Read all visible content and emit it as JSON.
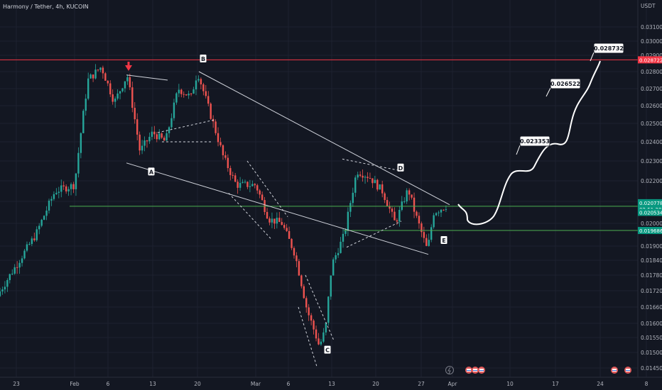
{
  "header": {
    "title": "Harmony / Tether, 4h, KUCOIN"
  },
  "price_axis": {
    "currency": "USDT",
    "ticks": [
      "0.031000",
      "0.030000",
      "0.029000",
      "0.028000",
      "0.027000",
      "0.026000",
      "0.025000",
      "0.024000",
      "0.023000",
      "0.022000",
      "0.021000",
      "0.020000",
      "0.019000",
      "0.018400",
      "0.017800",
      "0.017200",
      "0.016600",
      "0.016000",
      "0.015500",
      "0.015000",
      "0.014500"
    ]
  },
  "price_tags": [
    {
      "text": "0.028722",
      "value": 0.028722,
      "color": "#f23645"
    },
    {
      "text": "0.020778",
      "value": 0.020778,
      "color": "#089981"
    },
    {
      "text": "02:51:28",
      "value": 0.02047,
      "color": "#089981"
    },
    {
      "text": "0.020534",
      "value": 0.020534,
      "color": "#089981"
    },
    {
      "text": "0.019686",
      "value": 0.019686,
      "color": "#089981"
    }
  ],
  "time_axis": {
    "ticks": [
      "23",
      "Feb",
      "6",
      "13",
      "20",
      "Mar",
      "6",
      "13",
      "20",
      "27",
      "Apr",
      "10",
      "17",
      "24",
      "8"
    ]
  },
  "chart_data": {
    "type": "candlestick",
    "symbol": "Harmony / Tether",
    "interval": "4h",
    "exchange": "KUCOIN",
    "x_axis": [
      "23",
      "Feb",
      "6",
      "13",
      "20",
      "Mar",
      "6",
      "13",
      "20",
      "27",
      "Apr",
      "10",
      "17",
      "24",
      "8"
    ],
    "y_axis_unit": "USDT",
    "y_range": [
      0.0142,
      0.0316
    ],
    "horizontal_levels": [
      {
        "value": 0.028722,
        "color": "#f23645"
      },
      {
        "value": 0.020778,
        "color": "#089981"
      },
      {
        "value": 0.019686,
        "color": "#089981"
      }
    ],
    "pattern_points": [
      "A",
      "B",
      "C",
      "D",
      "E"
    ],
    "projection_targets": [
      {
        "label": "0.023353",
        "value": 0.023353
      },
      {
        "label": "0.026522",
        "value": 0.026522
      },
      {
        "label": "0.028732",
        "value": 0.028732
      }
    ],
    "price_path": [
      {
        "t": "Jan 20",
        "price": 0.017
      },
      {
        "t": "Jan 23",
        "price": 0.0182
      },
      {
        "t": "Jan 26",
        "price": 0.0195
      },
      {
        "t": "Jan 29",
        "price": 0.0215
      },
      {
        "t": "Feb 1",
        "price": 0.0218
      },
      {
        "t": "Feb 3",
        "price": 0.0275
      },
      {
        "t": "Feb 5",
        "price": 0.0283
      },
      {
        "t": "Feb 7",
        "price": 0.0262
      },
      {
        "t": "Feb 9",
        "price": 0.0278
      },
      {
        "t": "Feb 11",
        "price": 0.0235
      },
      {
        "t": "Feb 13",
        "price": 0.0245
      },
      {
        "t": "Feb 15",
        "price": 0.024
      },
      {
        "t": "Feb 17",
        "price": 0.027
      },
      {
        "t": "Feb 19",
        "price": 0.0265
      },
      {
        "t": "Feb 20",
        "price": 0.028
      },
      {
        "t": "Feb 22",
        "price": 0.0255
      },
      {
        "t": "Feb 24",
        "price": 0.0232
      },
      {
        "t": "Feb 26",
        "price": 0.0218
      },
      {
        "t": "Mar 1",
        "price": 0.0218
      },
      {
        "t": "Mar 3",
        "price": 0.0202
      },
      {
        "t": "Mar 5",
        "price": 0.02
      },
      {
        "t": "Mar 7",
        "price": 0.0187
      },
      {
        "t": "Mar 9",
        "price": 0.0165
      },
      {
        "t": "Mar 11",
        "price": 0.0152
      },
      {
        "t": "Mar 12",
        "price": 0.0158
      },
      {
        "t": "Mar 13",
        "price": 0.0182
      },
      {
        "t": "Mar 15",
        "price": 0.0195
      },
      {
        "t": "Mar 17",
        "price": 0.0225
      },
      {
        "t": "Mar 19",
        "price": 0.0222
      },
      {
        "t": "Mar 21",
        "price": 0.0215
      },
      {
        "t": "Mar 23",
        "price": 0.02
      },
      {
        "t": "Mar 25",
        "price": 0.0216
      },
      {
        "t": "Mar 26",
        "price": 0.0205
      },
      {
        "t": "Mar 28",
        "price": 0.0188
      },
      {
        "t": "Mar 29",
        "price": 0.0205
      },
      {
        "t": "Mar 31",
        "price": 0.0208
      }
    ]
  },
  "toolbar_icons": [
    "lightning-icon",
    "flag-icon",
    "flag-icon",
    "flag-icon"
  ]
}
